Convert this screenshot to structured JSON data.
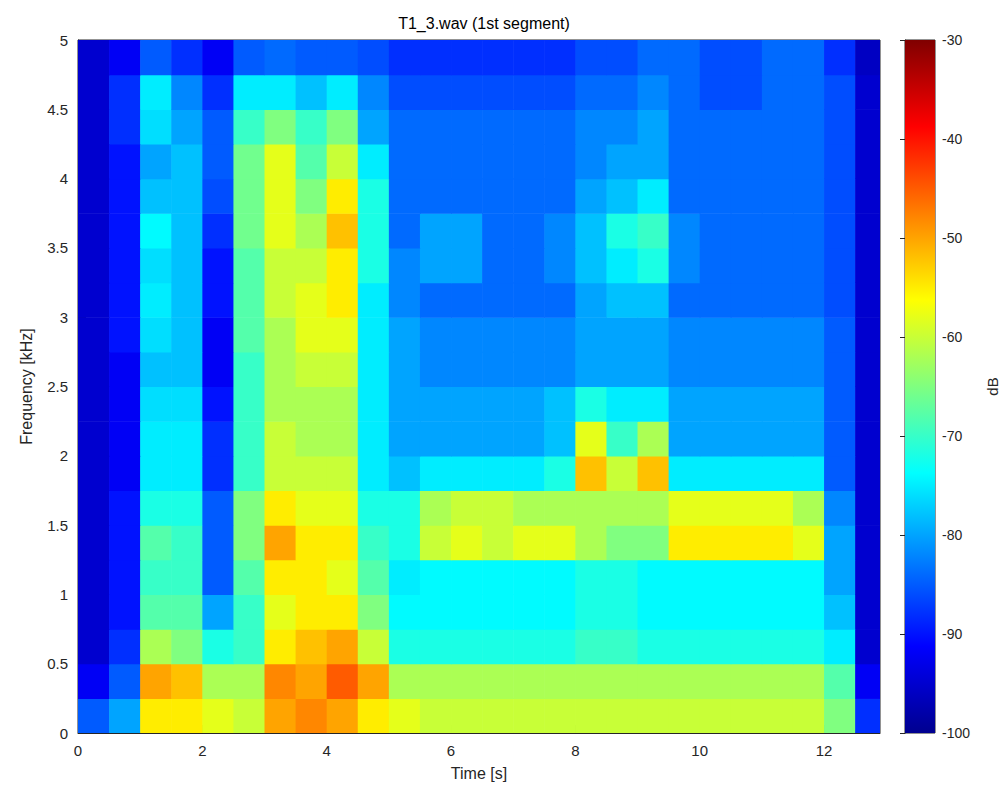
{
  "chart_data": {
    "type": "heatmap",
    "title": "T1_3.wav (1st segment)",
    "x_label": "Time [s]",
    "y_label": "Frequency [kHz]",
    "xlim": [
      0,
      12.9
    ],
    "xticks": [
      0,
      2,
      4,
      6,
      8,
      10,
      12
    ],
    "ylim": [
      0,
      5
    ],
    "yticks": [
      0,
      0.5,
      1,
      1.5,
      2,
      2.5,
      3,
      3.5,
      4,
      4.5,
      5
    ],
    "color": "jet",
    "x_bins": [
      0,
      0.5,
      1,
      1.5,
      2,
      2.5,
      3,
      3.5,
      4,
      4.5,
      5,
      5.5,
      6,
      6.5,
      7,
      7.5,
      8,
      8.5,
      9,
      9.5,
      10,
      10.5,
      11,
      11.5,
      12,
      12.5,
      13
    ],
    "y_bins": [
      0,
      0.25,
      0.5,
      0.75,
      1,
      1.25,
      1.5,
      1.75,
      2,
      2.25,
      2.5,
      2.75,
      3,
      3.25,
      3.5,
      3.75,
      4,
      4.25,
      4.5,
      4.75,
      5
    ],
    "cells": [
      [
        -85,
        -80,
        -55,
        -55,
        -58,
        -60,
        -50,
        -48,
        -50,
        -55,
        -58,
        -60,
        -60,
        -60,
        -60,
        -60,
        -60,
        -60,
        -60,
        -60,
        -60,
        -60,
        -60,
        -60,
        -65,
        -88
      ],
      [
        -92,
        -85,
        -50,
        -52,
        -62,
        -62,
        -48,
        -50,
        -45,
        -50,
        -62,
        -62,
        -62,
        -62,
        -62,
        -62,
        -62,
        -62,
        -62,
        -62,
        -62,
        -62,
        -62,
        -62,
        -68,
        -92
      ],
      [
        -95,
        -88,
        -62,
        -65,
        -72,
        -70,
        -55,
        -52,
        -50,
        -60,
        -72,
        -72,
        -72,
        -72,
        -72,
        -72,
        -70,
        -70,
        -72,
        -72,
        -72,
        -72,
        -72,
        -72,
        -75,
        -95
      ],
      [
        -95,
        -90,
        -68,
        -68,
        -80,
        -70,
        -58,
        -55,
        -55,
        -65,
        -74,
        -74,
        -74,
        -74,
        -74,
        -74,
        -72,
        -72,
        -74,
        -74,
        -74,
        -74,
        -74,
        -74,
        -78,
        -95
      ],
      [
        -95,
        -90,
        -70,
        -70,
        -85,
        -68,
        -55,
        -55,
        -58,
        -68,
        -75,
        -74,
        -74,
        -74,
        -74,
        -74,
        -72,
        -72,
        -74,
        -74,
        -74,
        -74,
        -74,
        -74,
        -80,
        -95
      ],
      [
        -95,
        -90,
        -68,
        -70,
        -85,
        -65,
        -50,
        -55,
        -55,
        -70,
        -72,
        -60,
        -58,
        -60,
        -58,
        -58,
        -62,
        -65,
        -65,
        -55,
        -55,
        -55,
        -55,
        -58,
        -80,
        -95
      ],
      [
        -95,
        -90,
        -72,
        -72,
        -85,
        -65,
        -55,
        -58,
        -58,
        -72,
        -72,
        -62,
        -60,
        -60,
        -62,
        -62,
        -62,
        -62,
        -62,
        -58,
        -58,
        -58,
        -58,
        -62,
        -82,
        -95
      ],
      [
        -95,
        -92,
        -75,
        -75,
        -88,
        -70,
        -60,
        -60,
        -60,
        -75,
        -78,
        -75,
        -75,
        -75,
        -75,
        -72,
        -52,
        -60,
        -52,
        -75,
        -75,
        -75,
        -75,
        -75,
        -85,
        -95
      ],
      [
        -95,
        -92,
        -75,
        -75,
        -88,
        -70,
        -60,
        -62,
        -62,
        -75,
        -80,
        -80,
        -80,
        -80,
        -80,
        -78,
        -58,
        -70,
        -62,
        -80,
        -80,
        -80,
        -80,
        -80,
        -85,
        -95
      ],
      [
        -95,
        -92,
        -76,
        -76,
        -90,
        -70,
        -62,
        -62,
        -62,
        -75,
        -80,
        -80,
        -80,
        -80,
        -80,
        -78,
        -72,
        -75,
        -75,
        -80,
        -80,
        -80,
        -80,
        -80,
        -85,
        -95
      ],
      [
        -95,
        -92,
        -78,
        -78,
        -92,
        -70,
        -62,
        -60,
        -60,
        -75,
        -80,
        -82,
        -82,
        -82,
        -82,
        -82,
        -80,
        -80,
        -80,
        -82,
        -82,
        -82,
        -82,
        -82,
        -85,
        -95
      ],
      [
        -95,
        -90,
        -76,
        -78,
        -92,
        -68,
        -62,
        -58,
        -58,
        -75,
        -80,
        -82,
        -82,
        -82,
        -82,
        -82,
        -80,
        -80,
        -80,
        -82,
        -82,
        -82,
        -82,
        -82,
        -85,
        -95
      ],
      [
        -95,
        -90,
        -75,
        -78,
        -90,
        -68,
        -60,
        -58,
        -55,
        -75,
        -82,
        -84,
        -84,
        -84,
        -84,
        -84,
        -80,
        -78,
        -78,
        -84,
        -84,
        -84,
        -84,
        -84,
        -86,
        -95
      ],
      [
        -95,
        -90,
        -76,
        -78,
        -90,
        -68,
        -60,
        -60,
        -55,
        -72,
        -82,
        -80,
        -80,
        -84,
        -84,
        -82,
        -78,
        -75,
        -72,
        -82,
        -84,
        -84,
        -84,
        -84,
        -86,
        -95
      ],
      [
        -95,
        -90,
        -74,
        -78,
        -88,
        -66,
        -58,
        -62,
        -52,
        -72,
        -84,
        -80,
        -80,
        -84,
        -84,
        -82,
        -78,
        -72,
        -70,
        -82,
        -84,
        -84,
        -84,
        -84,
        -86,
        -95
      ],
      [
        -95,
        -90,
        -78,
        -78,
        -86,
        -66,
        -58,
        -65,
        -55,
        -72,
        -84,
        -84,
        -84,
        -84,
        -84,
        -84,
        -80,
        -78,
        -75,
        -84,
        -84,
        -84,
        -84,
        -84,
        -86,
        -95
      ],
      [
        -95,
        -90,
        -80,
        -78,
        -85,
        -66,
        -58,
        -68,
        -60,
        -75,
        -84,
        -84,
        -84,
        -84,
        -84,
        -84,
        -82,
        -80,
        -80,
        -84,
        -84,
        -84,
        -84,
        -84,
        -86,
        -95
      ],
      [
        -95,
        -88,
        -76,
        -80,
        -85,
        -70,
        -65,
        -70,
        -65,
        -80,
        -84,
        -84,
        -84,
        -84,
        -84,
        -84,
        -82,
        -82,
        -80,
        -84,
        -84,
        -84,
        -84,
        -84,
        -86,
        -95
      ],
      [
        -95,
        -88,
        -75,
        -82,
        -88,
        -75,
        -75,
        -78,
        -75,
        -82,
        -86,
        -86,
        -86,
        -86,
        -86,
        -86,
        -84,
        -84,
        -82,
        -84,
        -86,
        -86,
        -84,
        -84,
        -86,
        -95
      ],
      [
        -95,
        -92,
        -85,
        -88,
        -92,
        -85,
        -84,
        -85,
        -85,
        -86,
        -88,
        -88,
        -88,
        -88,
        -88,
        -88,
        -86,
        -86,
        -84,
        -84,
        -86,
        -86,
        -84,
        -84,
        -88,
        -96
      ]
    ],
    "colorbar": {
      "range": [
        -100,
        -30
      ],
      "ticks": [
        -30,
        -40,
        -50,
        -60,
        -70,
        -80,
        -90,
        -100
      ],
      "label": "dB"
    }
  }
}
